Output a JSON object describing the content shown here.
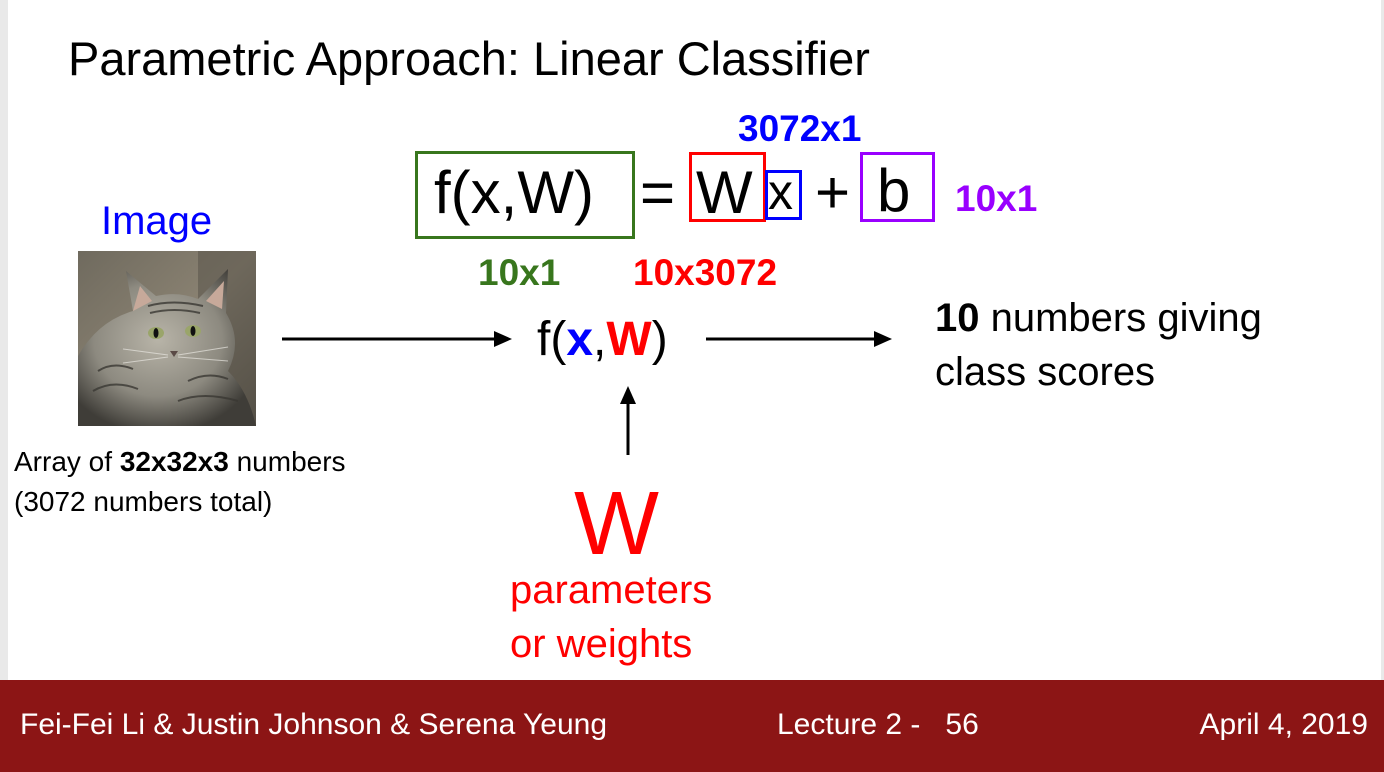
{
  "title": "Parametric Approach: Linear Classifier",
  "equation": {
    "lhs": "f(x,W)",
    "equals": "=",
    "w": "W",
    "x": "x",
    "plus": "+",
    "b": "b",
    "x_dim": "3072x1",
    "b_dim": "10x1",
    "f_dim": "10x1",
    "w_dim": "10x3072"
  },
  "image_label": "Image",
  "image_caption": {
    "line1_prefix": "Array of ",
    "line1_bold": "32x32x3",
    "line1_suffix": " numbers",
    "line2": "(3072 numbers total)"
  },
  "function": {
    "f_open": "f(",
    "x": "x",
    "comma": ",",
    "w": "W",
    "close": ")"
  },
  "output": {
    "bold": "10",
    "line1_suffix": " numbers giving",
    "line2": "class scores"
  },
  "weights": {
    "big_w": "W",
    "line1": "parameters",
    "line2": "or weights"
  },
  "footer": {
    "authors": "Fei-Fei Li & Justin Johnson & Serena Yeung",
    "lecture": "Lecture 2 -   56",
    "date": "April 4, 2019"
  },
  "colors": {
    "blue": "#0000ff",
    "red": "#ff0000",
    "green": "#38761d",
    "purple": "#9900ff",
    "footer_bg": "#8c1515"
  }
}
